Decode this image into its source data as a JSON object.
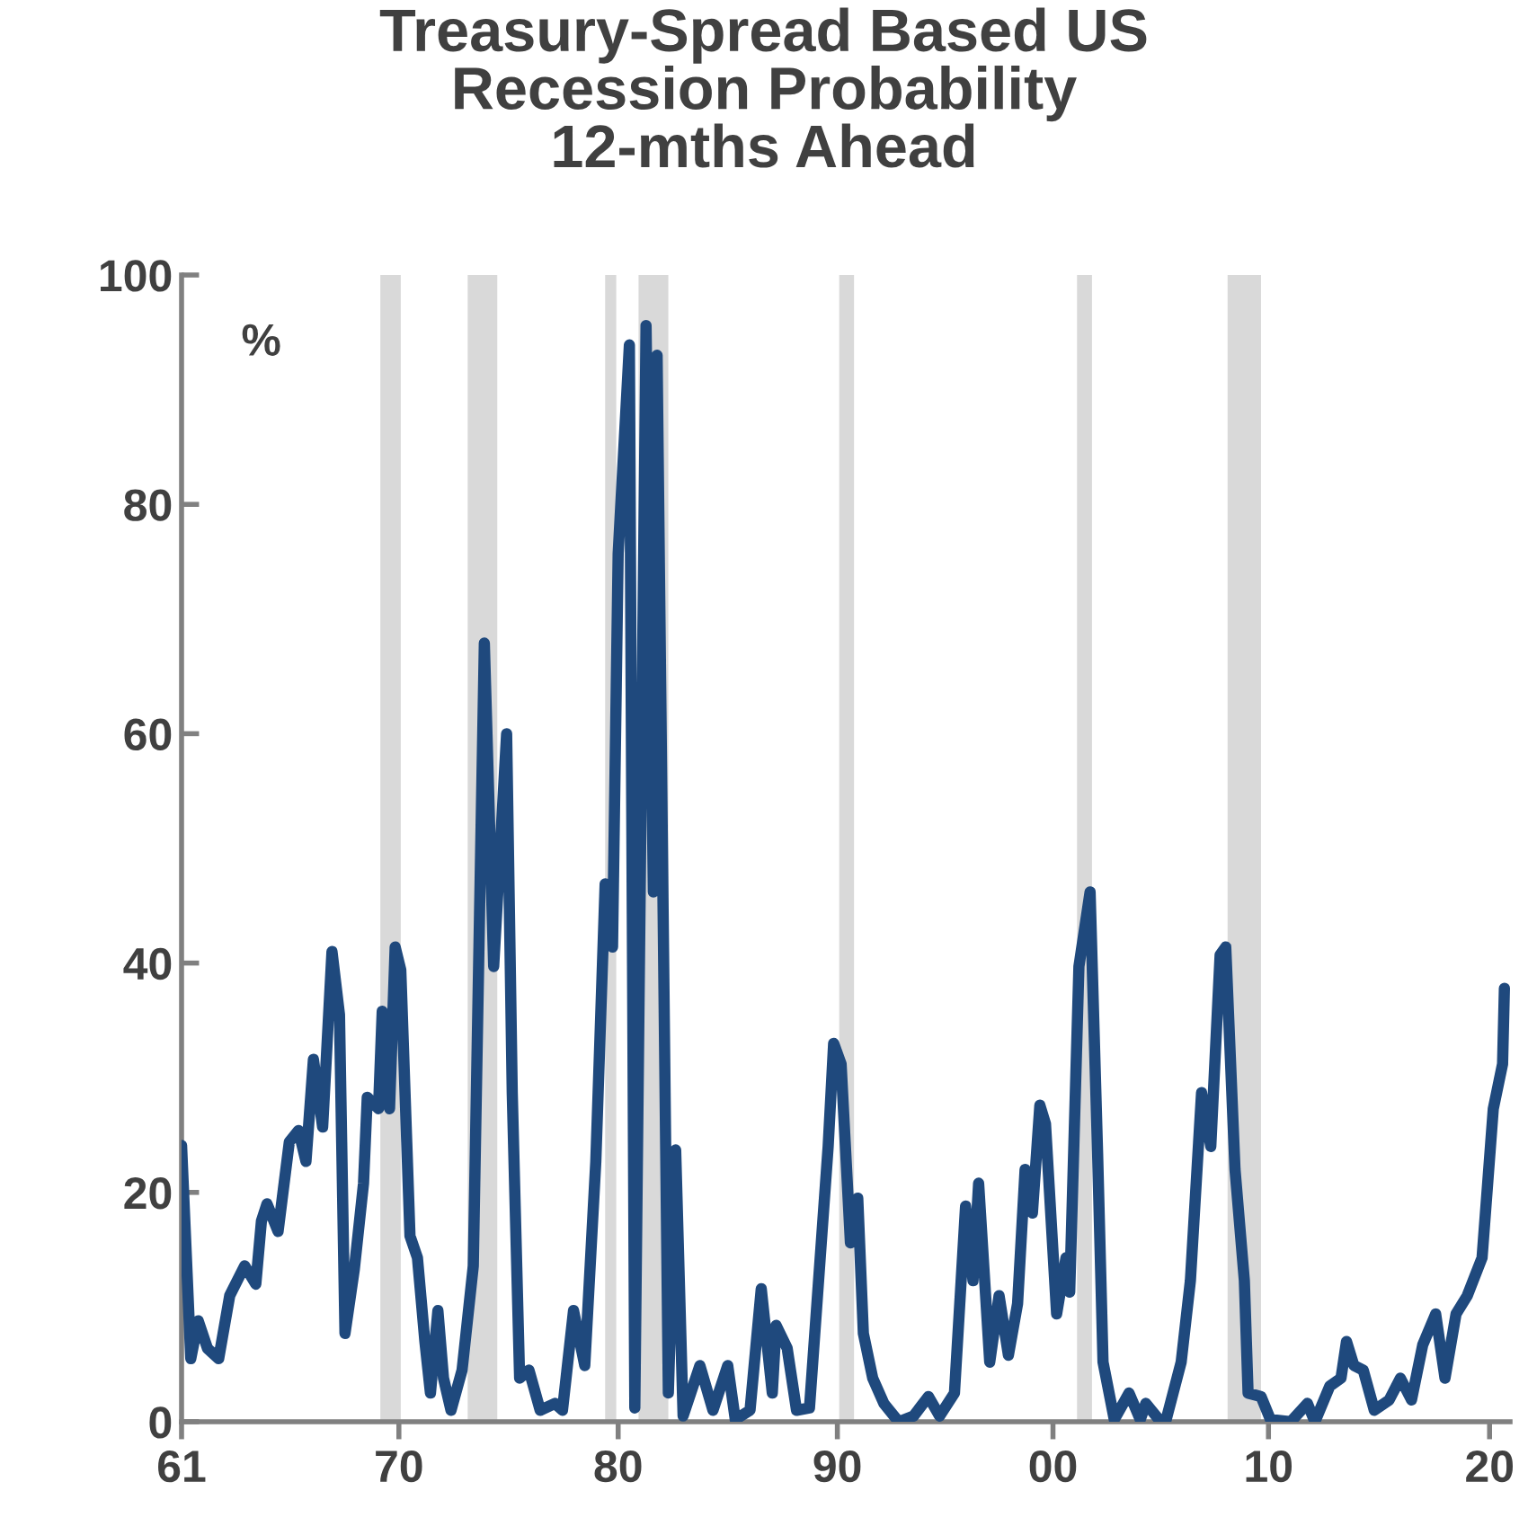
{
  "chart_data": {
    "type": "line",
    "title": "Treasury-Spread Based US\nRecession Probability\n12-mths Ahead",
    "ylabel": "%",
    "x": [
      "1961-01",
      "1961-04",
      "1961-06",
      "1961-10",
      "1962-03",
      "1962-09",
      "1963-03",
      "1963-11",
      "1964-05",
      "1964-08",
      "1964-11",
      "1965-05",
      "1965-11",
      "1966-04",
      "1966-08",
      "1966-12",
      "1967-05",
      "1967-10",
      "1968-02",
      "1968-05",
      "1968-10",
      "1969-03",
      "1969-05",
      "1969-11",
      "1970-01",
      "1970-05",
      "1970-08",
      "1970-11",
      "1971-04",
      "1971-08",
      "1971-12",
      "1972-03",
      "1972-07",
      "1972-10",
      "1973-02",
      "1973-08",
      "1974-02",
      "1974-08",
      "1975-01",
      "1975-08",
      "1975-11",
      "1976-03",
      "1976-08",
      "1977-02",
      "1977-10",
      "1978-02",
      "1978-08",
      "1979-02",
      "1979-08",
      "1980-01",
      "1980-05",
      "1980-08",
      "1981-02",
      "1981-05",
      "1981-11",
      "1982-03",
      "1982-05",
      "1982-11",
      "1983-03",
      "1983-07",
      "1984-04",
      "1984-11",
      "1985-07",
      "1985-11",
      "1986-07",
      "1987-01",
      "1987-07",
      "1987-09",
      "1988-03",
      "1988-08",
      "1989-03",
      "1990-01",
      "1990-04",
      "1990-08",
      "1991-01",
      "1991-05",
      "1991-08",
      "1992-01",
      "1992-07",
      "1993-03",
      "1993-11",
      "1994-07",
      "1995-01",
      "1995-09",
      "1996-03",
      "1996-07",
      "1996-10",
      "1997-04",
      "1997-09",
      "1998-02",
      "1998-07",
      "1998-11",
      "1999-03",
      "1999-07",
      "1999-10",
      "2000-04",
      "2000-09",
      "2000-11",
      "2001-04",
      "2001-10",
      "2002-02",
      "2002-05",
      "2002-11",
      "2003-07",
      "2004-01",
      "2004-04",
      "2004-11",
      "2005-03",
      "2005-11",
      "2006-04",
      "2006-10",
      "2007-03",
      "2007-08",
      "2007-11",
      "2008-04",
      "2008-09",
      "2008-11",
      "2009-06",
      "2009-11",
      "2010-10",
      "2011-07",
      "2011-11",
      "2012-07",
      "2013-01",
      "2013-04",
      "2013-08",
      "2014-01",
      "2014-07",
      "2015-03",
      "2015-09",
      "2016-03",
      "2016-09",
      "2017-04",
      "2017-09",
      "2018-03",
      "2018-09",
      "2019-05",
      "2019-11",
      "2020-04",
      "2020-05"
    ],
    "series": [
      {
        "color": "#1f497d",
        "values": [
          24.1,
          13,
          5.5,
          8.8,
          6.4,
          5.5,
          11,
          13.6,
          12,
          17.5,
          19,
          16.6,
          24.4,
          25.4,
          22.7,
          31.6,
          25.7,
          41,
          35.5,
          7.7,
          13.3,
          20.8,
          28.3,
          27.3,
          35.8,
          27.3,
          41.4,
          39.4,
          16.2,
          14.3,
          7,
          2.5,
          9.7,
          3.8,
          1,
          4.5,
          13.6,
          67.9,
          39.7,
          60,
          28.7,
          3.8,
          4.5,
          1,
          1.6,
          1,
          9.7,
          4.9,
          22.7,
          46.9,
          41.4,
          75.7,
          93.9,
          1.2,
          95.6,
          46.2,
          93,
          2.5,
          23.7,
          0.5,
          4.9,
          1,
          4.9,
          0.2,
          1,
          11.6,
          2.5,
          8.4,
          6.4,
          1,
          1.2,
          24,
          33,
          31.2,
          15.6,
          19.5,
          7.7,
          3.8,
          1.6,
          0,
          0.5,
          2.2,
          0.5,
          2.5,
          18.8,
          12.3,
          20.8,
          5.2,
          11,
          5.8,
          10.3,
          22,
          18.2,
          27.6,
          26,
          9.4,
          14.3,
          11.3,
          39.7,
          46.2,
          23.4,
          5.2,
          0.2,
          2.5,
          0.2,
          1.6,
          0.2,
          0.2,
          5.2,
          12.3,
          28.7,
          24,
          40.7,
          41.4,
          22,
          12.3,
          2.5,
          2.2,
          0.2,
          0,
          1.6,
          0,
          3.1,
          3.8,
          7,
          4.9,
          4.5,
          1,
          1.9,
          3.8,
          1.9,
          6.7,
          9.4,
          3.8,
          9.4,
          11,
          14.3,
          27.3,
          31.2,
          37.8
        ]
      }
    ],
    "xlim": [
      "1961-01",
      "2020-08"
    ],
    "xticks": [
      {
        "value": "1961-01",
        "label": "61"
      },
      {
        "value": "1970-10",
        "label": "70"
      },
      {
        "value": "1980-08",
        "label": "80"
      },
      {
        "value": "1990-06",
        "label": "90"
      },
      {
        "value": "2000-02",
        "label": "00"
      },
      {
        "value": "2009-10",
        "label": "10"
      },
      {
        "value": "2019-09",
        "label": "20"
      }
    ],
    "ylim": [
      0,
      100
    ],
    "yticks": [
      0,
      20,
      40,
      60,
      80,
      100
    ],
    "bands": [
      {
        "axis": "x",
        "from": "1969-12",
        "to": "1970-11",
        "color": "#d9d9d9"
      },
      {
        "axis": "x",
        "from": "1973-11",
        "to": "1975-03",
        "color": "#d9d9d9"
      },
      {
        "axis": "x",
        "from": "1980-01",
        "to": "1980-07",
        "color": "#d9d9d9"
      },
      {
        "axis": "x",
        "from": "1981-07",
        "to": "1982-11",
        "color": "#d9d9d9"
      },
      {
        "axis": "x",
        "from": "1990-07",
        "to": "1991-03",
        "color": "#d9d9d9"
      },
      {
        "axis": "x",
        "from": "2001-03",
        "to": "2001-11",
        "color": "#d9d9d9"
      },
      {
        "axis": "x",
        "from": "2007-12",
        "to": "2009-06",
        "color": "#d9d9d9"
      }
    ],
    "marker": "none",
    "line_style": "solid"
  }
}
